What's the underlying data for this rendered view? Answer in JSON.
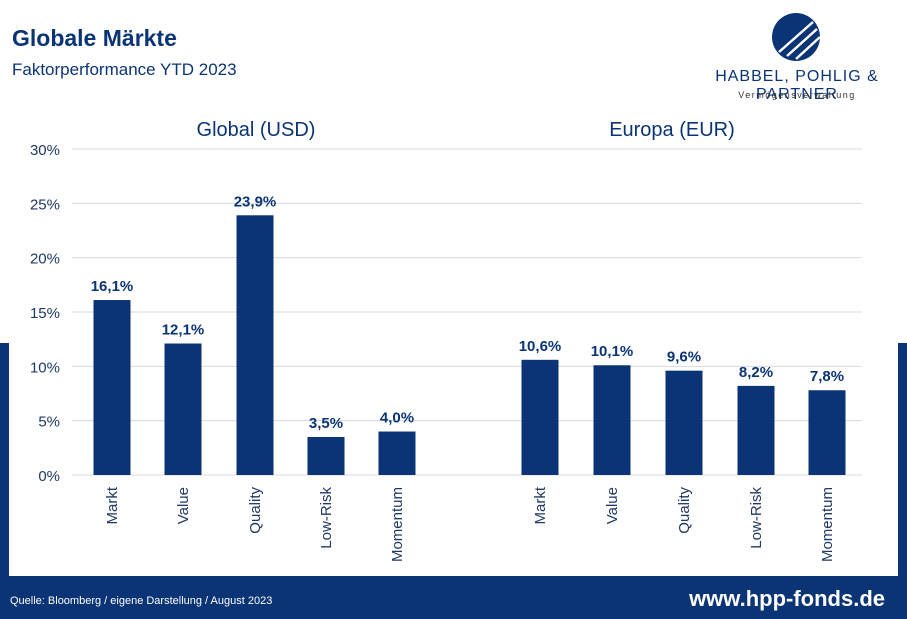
{
  "header": {
    "title": "Globale Märkte",
    "subtitle": "Faktorperformance YTD 2023"
  },
  "brand": {
    "name": "HABBEL, POHLIG & PARTNER",
    "tagline": "Vermögensverwaltung",
    "logo_icon": "hpp-logo-icon"
  },
  "footer": {
    "source": "Quelle: Bloomberg / eigene Darstellung / August 2023",
    "website": "www.hpp-fonds.de"
  },
  "colors": {
    "brand_blue": "#0a3475",
    "bar": "#0a3475",
    "grid": "#d9d9d9"
  },
  "chart_data": [
    {
      "type": "bar",
      "title": "Global (USD)",
      "categories": [
        "Markt",
        "Value",
        "Quality",
        "Low-Risk",
        "Momentum"
      ],
      "values": [
        16.1,
        12.1,
        23.9,
        3.5,
        4.0
      ],
      "value_labels": [
        "16,1%",
        "12,1%",
        "23,9%",
        "3,5%",
        "4,0%"
      ],
      "ylim": [
        0,
        30
      ],
      "yticks": [
        "0%",
        "5%",
        "10%",
        "15%",
        "20%",
        "25%",
        "30%"
      ],
      "grid": true
    },
    {
      "type": "bar",
      "title": "Europa (EUR)",
      "categories": [
        "Markt",
        "Value",
        "Quality",
        "Low-Risk",
        "Momentum"
      ],
      "values": [
        10.6,
        10.1,
        9.6,
        8.2,
        7.8
      ],
      "value_labels": [
        "10,6%",
        "10,1%",
        "9,6%",
        "8,2%",
        "7,8%"
      ],
      "ylim": [
        0,
        30
      ],
      "yticks": [
        "0%",
        "5%",
        "10%",
        "15%",
        "20%",
        "25%",
        "30%"
      ],
      "grid": true
    }
  ]
}
